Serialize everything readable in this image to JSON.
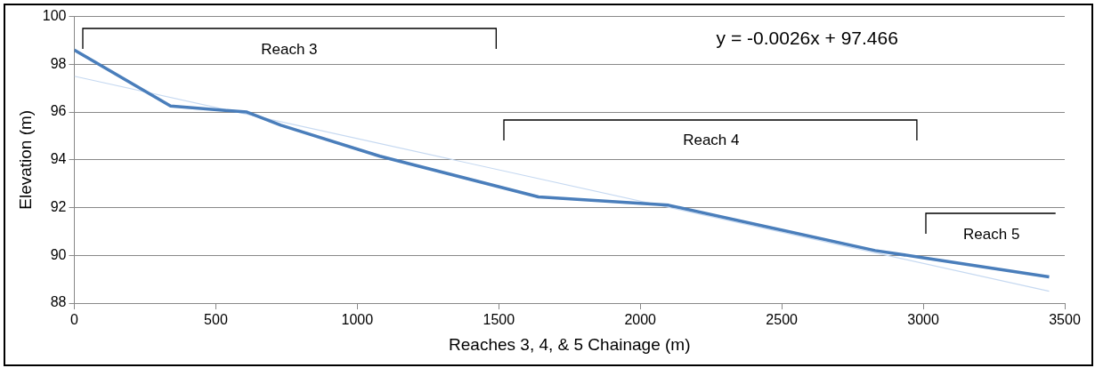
{
  "chart_data": {
    "type": "line",
    "xlabel": "Reaches 3, 4, & 5 Chainage (m)",
    "ylabel": "Elevation (m)",
    "xlim": [
      0,
      3500
    ],
    "xticks": [
      0,
      500,
      1000,
      1500,
      2000,
      2500,
      3000,
      3500
    ],
    "ylim": [
      88,
      100
    ],
    "yticks": [
      88,
      90,
      92,
      94,
      96,
      98,
      100
    ],
    "grid": "y",
    "legend": false,
    "marker": "none",
    "series": [
      {
        "color": "#c6d9f1",
        "x": [
          0,
          3445
        ],
        "values": [
          97.5,
          88.5
        ]
      },
      {
        "color": "#4a7ebb",
        "x": [
          0,
          340,
          610,
          730,
          1080,
          1640,
          2100,
          2830,
          3000,
          3445
        ],
        "values": [
          98.6,
          96.25,
          96.0,
          95.45,
          94.15,
          92.45,
          92.1,
          90.2,
          89.9,
          89.1
        ]
      }
    ],
    "annotations": [
      "Reach 3",
      "Reach 4",
      "Reach 5",
      "y = -0.0026x + 97.466"
    ]
  }
}
